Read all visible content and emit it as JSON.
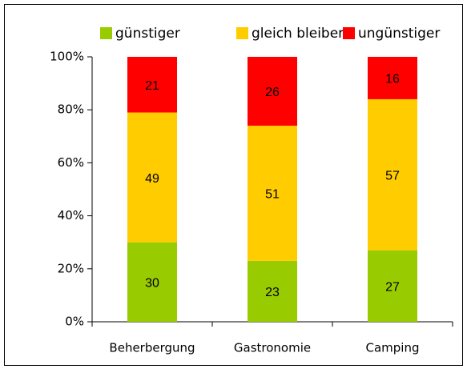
{
  "chart_data": {
    "type": "stacked_bar",
    "categories": [
      "Beherbergung",
      "Gastronomie",
      "Camping"
    ],
    "series": [
      {
        "name": "günstiger",
        "color": "#99cc00",
        "values": [
          30,
          23,
          27
        ]
      },
      {
        "name": "gleich bleibend",
        "color": "#ffcc00",
        "values": [
          49,
          51,
          57
        ]
      },
      {
        "name": "ungünstiger",
        "color": "#ff0000",
        "values": [
          21,
          26,
          16
        ]
      }
    ],
    "ylim": [
      0,
      100
    ],
    "yticks": [
      {
        "value": 0,
        "label": "0%"
      },
      {
        "value": 20,
        "label": "20%"
      },
      {
        "value": 40,
        "label": "40%"
      },
      {
        "value": 60,
        "label": "60%"
      },
      {
        "value": 80,
        "label": "80%"
      },
      {
        "value": 100,
        "label": "100%"
      }
    ],
    "legend": "top"
  }
}
